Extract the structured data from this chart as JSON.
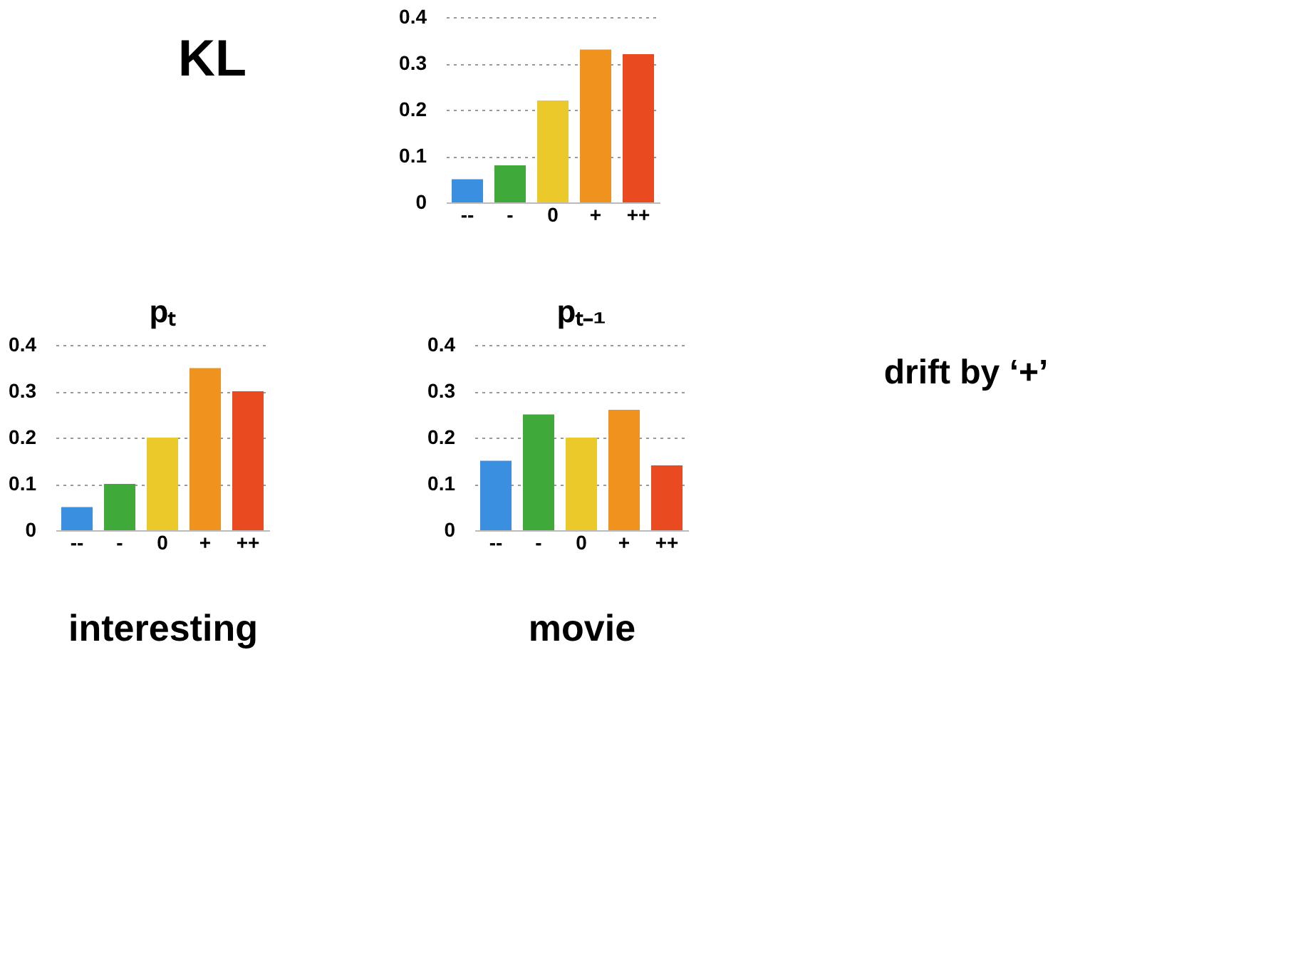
{
  "chart_data": [
    {
      "type": "bar",
      "categories": [
        "--",
        "-",
        "0",
        "+",
        "++"
      ],
      "values": [
        0.05,
        0.08,
        0.22,
        0.33,
        0.32
      ],
      "colors": [
        "#3b8fe0",
        "#3faa3a",
        "#ecc92a",
        "#f0921e",
        "#e94a1f"
      ],
      "ylim": [
        0,
        0.4
      ],
      "yticks": [
        0,
        0.1,
        0.2,
        0.3,
        0.4
      ],
      "grid": "y",
      "annotations": [
        "KL"
      ]
    },
    {
      "type": "bar",
      "title": "pₜ",
      "xlabel": "interesting",
      "categories": [
        "--",
        "-",
        "0",
        "+",
        "++"
      ],
      "values": [
        0.05,
        0.1,
        0.2,
        0.35,
        0.3
      ],
      "colors": [
        "#3b8fe0",
        "#3faa3a",
        "#ecc92a",
        "#f0921e",
        "#e94a1f"
      ],
      "ylim": [
        0,
        0.4
      ],
      "yticks": [
        0,
        0.1,
        0.2,
        0.3,
        0.4
      ],
      "grid": "y"
    },
    {
      "type": "bar",
      "title": "pₜ₋₁",
      "xlabel": "movie",
      "categories": [
        "--",
        "-",
        "0",
        "+",
        "++"
      ],
      "values": [
        0.15,
        0.25,
        0.2,
        0.26,
        0.14
      ],
      "colors": [
        "#3b8fe0",
        "#3faa3a",
        "#ecc92a",
        "#f0921e",
        "#e94a1f"
      ],
      "ylim": [
        0,
        0.4
      ],
      "yticks": [
        0,
        0.1,
        0.2,
        0.3,
        0.4
      ],
      "grid": "y",
      "annotations": [
        "drift by ‘+’"
      ]
    }
  ]
}
